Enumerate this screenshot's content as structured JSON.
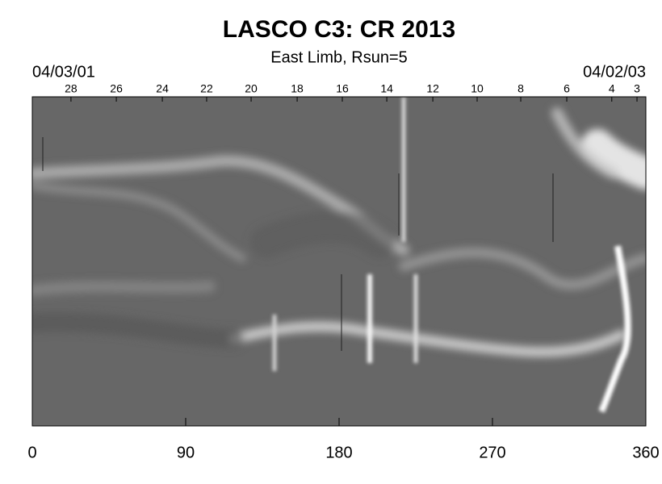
{
  "chart_data": {
    "type": "heatmap",
    "title": "LASCO C3: CR 2013",
    "subtitle": "East Limb, Rsun=5",
    "xlim": [
      0,
      360
    ],
    "xticks": [
      0,
      90,
      180,
      270,
      360
    ],
    "x2lim": [
      0,
      360
    ],
    "x2ticks": [
      {
        "value": 0,
        "label": "04/03/01"
      },
      {
        "value": 360,
        "label": "04/02/03"
      }
    ],
    "x2minor": [
      {
        "value": 22.7,
        "label": "28"
      },
      {
        "value": 49.3,
        "label": "26"
      },
      {
        "value": 76.3,
        "label": "24"
      },
      {
        "value": 102.3,
        "label": "22"
      },
      {
        "value": 128.4,
        "label": "20"
      },
      {
        "value": 155.4,
        "label": "18"
      },
      {
        "value": 181.9,
        "label": "16"
      },
      {
        "value": 208,
        "label": "14"
      },
      {
        "value": 235,
        "label": "12"
      },
      {
        "value": 261,
        "label": "10"
      },
      {
        "value": 286.6,
        "label": "8"
      },
      {
        "value": 313.6,
        "label": "6"
      },
      {
        "value": 340,
        "label": "4"
      },
      {
        "value": 354.8,
        "label": "3"
      }
    ]
  }
}
